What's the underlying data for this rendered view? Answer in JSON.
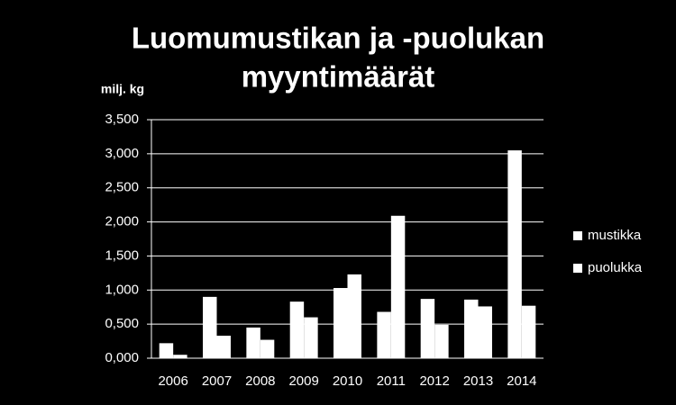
{
  "chart_data": {
    "type": "bar",
    "title_lines": [
      "Luomumustikan ja -puolukan",
      "myyntimäärät"
    ],
    "y_label": "milj. kg",
    "categories": [
      "2006",
      "2007",
      "2008",
      "2009",
      "2010",
      "2011",
      "2012",
      "2013",
      "2014"
    ],
    "series": [
      {
        "name": "mustikka",
        "color": "#ffffff",
        "values": [
          0.22,
          0.9,
          0.45,
          0.83,
          1.03,
          0.68,
          0.87,
          0.86,
          3.05
        ]
      },
      {
        "name": "puolukka",
        "color": "#ffffff",
        "values": [
          0.05,
          0.33,
          0.27,
          0.6,
          1.23,
          2.09,
          0.49,
          0.76,
          0.77
        ]
      }
    ],
    "ylim": [
      0,
      3.5
    ],
    "yticks": [
      {
        "value": 0,
        "label": "0,000"
      },
      {
        "value": 0.5,
        "label": "0,500"
      },
      {
        "value": 1,
        "label": "1,000"
      },
      {
        "value": 1.5,
        "label": "1,500"
      },
      {
        "value": 2,
        "label": "2,000"
      },
      {
        "value": 2.5,
        "label": "2,500"
      },
      {
        "value": 3,
        "label": "3,000"
      },
      {
        "value": 3.5,
        "label": "3,500"
      }
    ],
    "grid": true,
    "legend": "right",
    "background": "#000000"
  }
}
